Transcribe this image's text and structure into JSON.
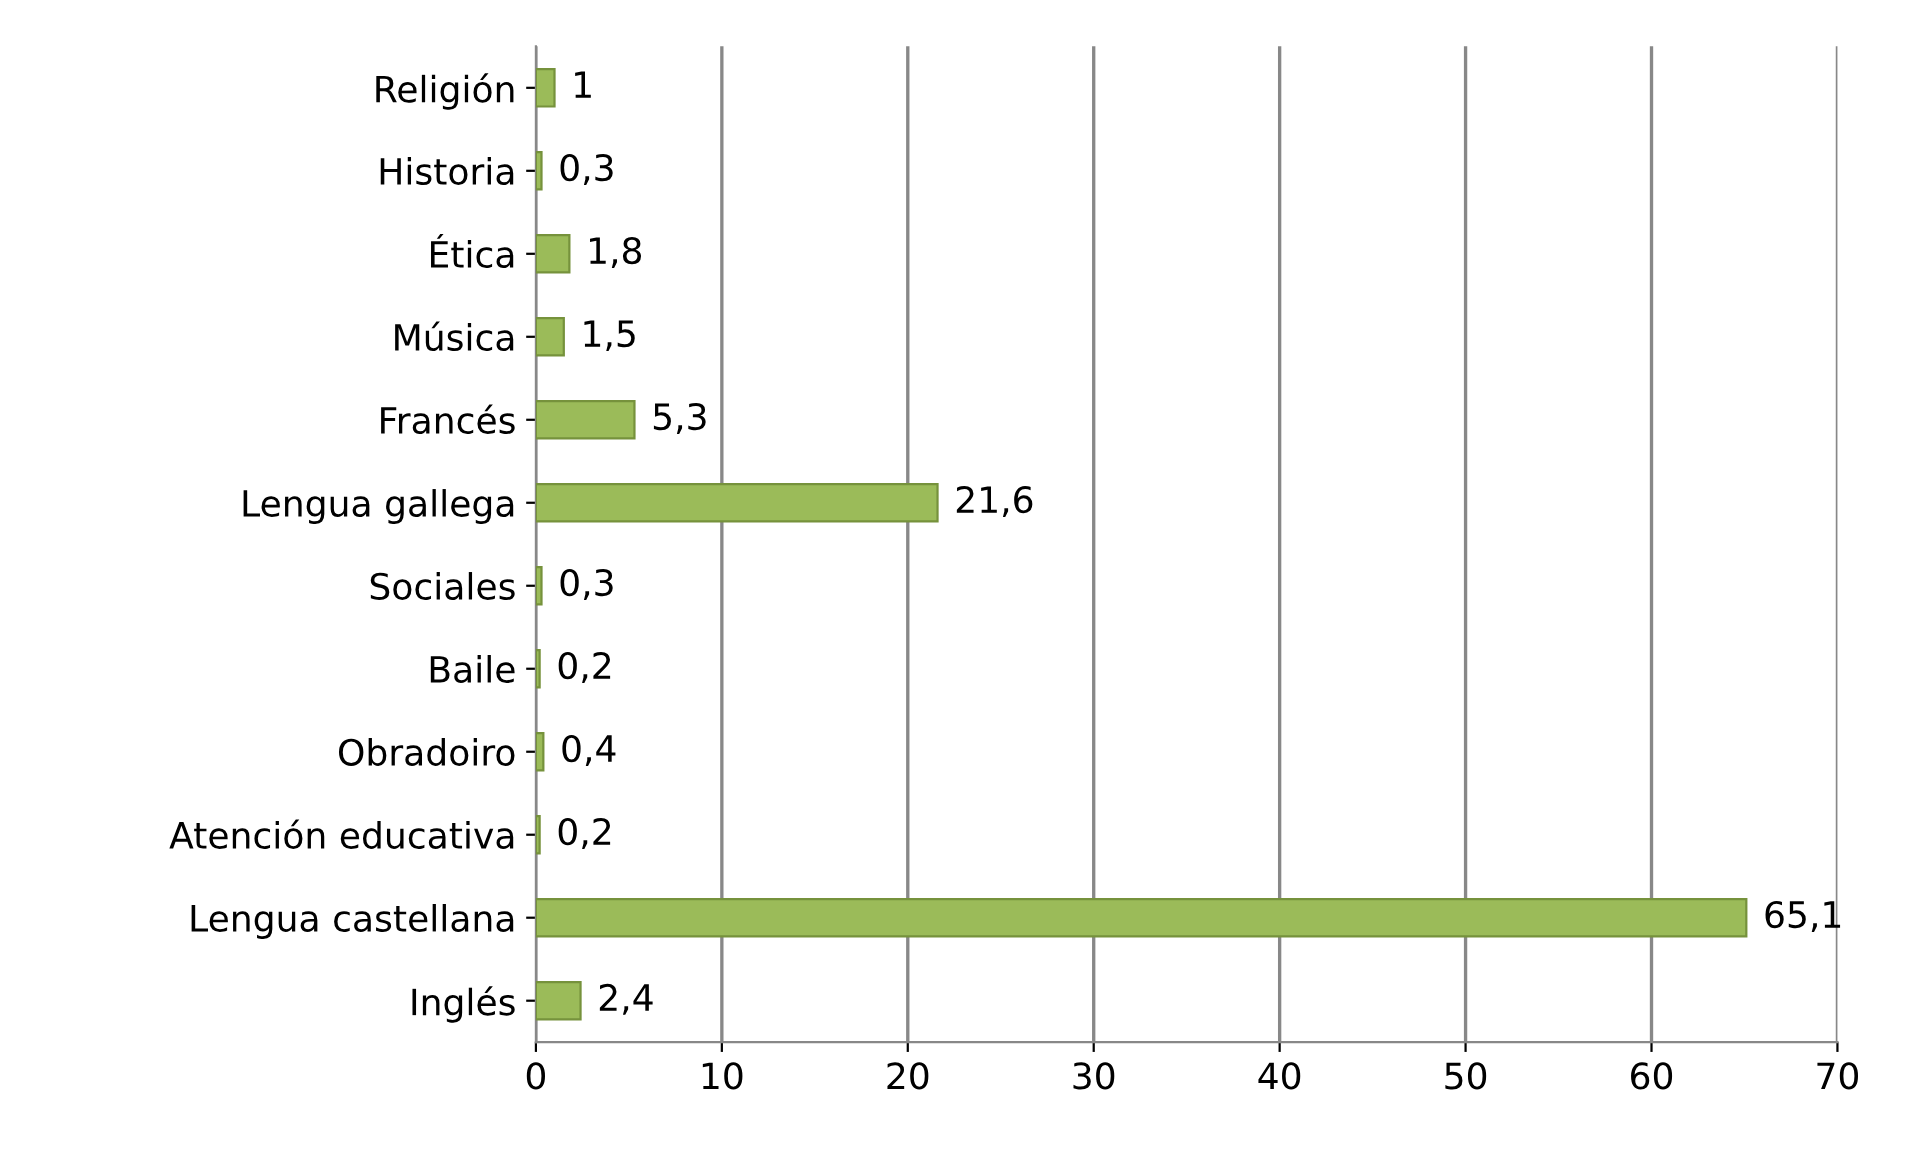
{
  "chart_data": {
    "type": "bar",
    "orientation": "horizontal",
    "categories": [
      "Religión",
      "Historia",
      "Ética",
      "Música",
      "Francés",
      "Lengua gallega",
      "Sociales",
      "Baile",
      "Obradoiro",
      "Atención educativa",
      "Lengua castellana",
      "Inglés"
    ],
    "values": [
      1,
      0.3,
      1.8,
      1.5,
      5.3,
      21.6,
      0.3,
      0.2,
      0.4,
      0.2,
      65.1,
      2.4
    ],
    "value_labels": [
      "1",
      "0,3",
      "1,8",
      "1,5",
      "5,3",
      "21,6",
      "0,3",
      "0,2",
      "0,4",
      "0,2",
      "65,1",
      "2,4"
    ],
    "color": "#9bbb59",
    "xlim": [
      0,
      70
    ],
    "xticks": [
      0,
      10,
      20,
      30,
      40,
      50,
      60,
      70
    ],
    "grid": "x",
    "legend": false
  }
}
